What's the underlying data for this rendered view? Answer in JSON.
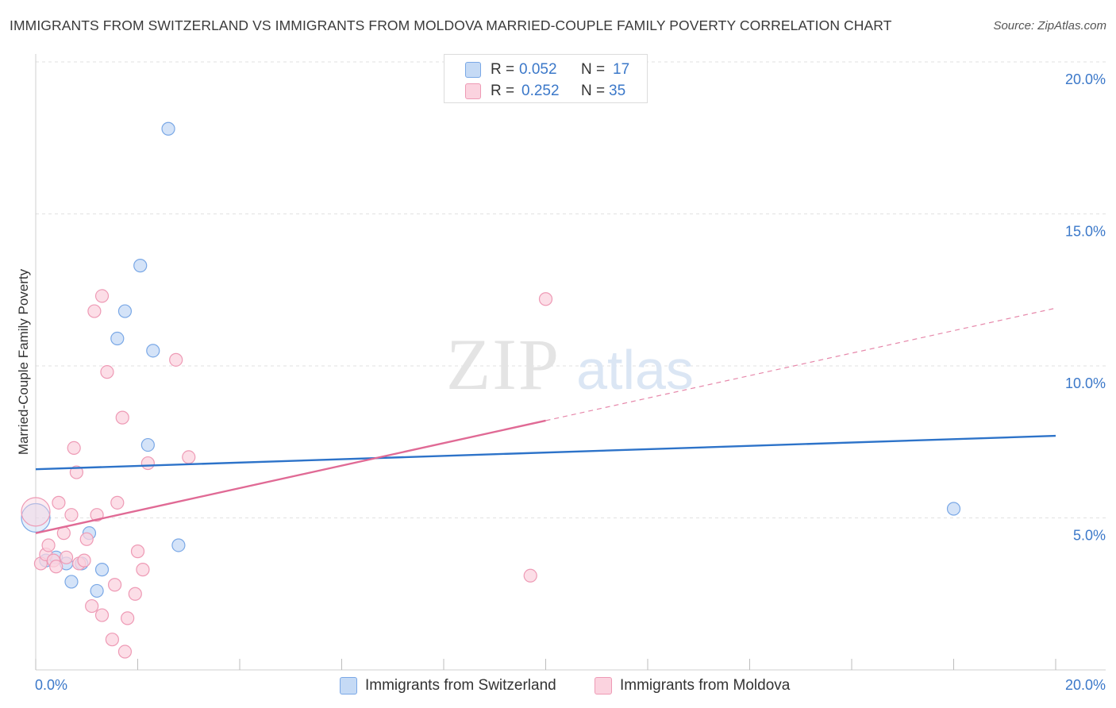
{
  "header": {
    "title": "IMMIGRANTS FROM SWITZERLAND VS IMMIGRANTS FROM MOLDOVA MARRIED-COUPLE FAMILY POVERTY CORRELATION CHART",
    "source": "Source: ZipAtlas.com"
  },
  "watermark": {
    "zip": "ZIP",
    "atlas": "atlas"
  },
  "legend_stats": [
    {
      "r_label": "R =",
      "r_value": "0.052",
      "n_label": "N =",
      "n_value": "17"
    },
    {
      "r_label": "R =",
      "r_value": "0.252",
      "n_label": "N =",
      "n_value": "35"
    }
  ],
  "chart_data": {
    "type": "scatter",
    "title": "IMMIGRANTS FROM SWITZERLAND VS IMMIGRANTS FROM MOLDOVA MARRIED-COUPLE FAMILY POVERTY CORRELATION CHART",
    "xlabel": "",
    "ylabel": "Married-Couple Family Poverty",
    "xlim": [
      0,
      20
    ],
    "ylim": [
      0,
      20
    ],
    "x_tick_labels": [
      "0.0%",
      "20.0%"
    ],
    "y_ticks": [
      5,
      10,
      15,
      20
    ],
    "y_tick_labels": [
      "5.0%",
      "10.0%",
      "15.0%",
      "20.0%"
    ],
    "grid": true,
    "legend_position": "bottom",
    "series": [
      {
        "name": "Immigrants from Switzerland",
        "color": "#7aa8e6",
        "fill": "#c5daf5",
        "r": 0.052,
        "n": 17,
        "trend": {
          "x": [
            0,
            20
          ],
          "y": [
            6.6,
            7.7
          ],
          "color": "#2d73c9"
        },
        "points": [
          {
            "x": 0.0,
            "y": 5.0,
            "big": true
          },
          {
            "x": 0.2,
            "y": 3.6
          },
          {
            "x": 0.4,
            "y": 3.7
          },
          {
            "x": 0.6,
            "y": 3.5
          },
          {
            "x": 0.7,
            "y": 2.9
          },
          {
            "x": 0.9,
            "y": 3.5
          },
          {
            "x": 1.05,
            "y": 4.5
          },
          {
            "x": 1.2,
            "y": 2.6
          },
          {
            "x": 1.3,
            "y": 3.3
          },
          {
            "x": 1.6,
            "y": 10.9
          },
          {
            "x": 1.75,
            "y": 11.8
          },
          {
            "x": 2.05,
            "y": 13.3
          },
          {
            "x": 2.2,
            "y": 7.4
          },
          {
            "x": 2.3,
            "y": 10.5
          },
          {
            "x": 2.6,
            "y": 17.8
          },
          {
            "x": 2.8,
            "y": 4.1
          },
          {
            "x": 18.0,
            "y": 5.3
          }
        ]
      },
      {
        "name": "Immigrants from Moldova",
        "color": "#ee9ab5",
        "fill": "#fbd3df",
        "r": 0.252,
        "n": 35,
        "trend": {
          "x": [
            0,
            10
          ],
          "y": [
            4.5,
            8.2
          ],
          "color": "#e06a95",
          "dashed_extension": {
            "x": [
              10,
              20
            ],
            "y": [
              8.2,
              11.9
            ]
          }
        },
        "points": [
          {
            "x": 0.0,
            "y": 5.2,
            "big": true
          },
          {
            "x": 0.1,
            "y": 3.5
          },
          {
            "x": 0.2,
            "y": 3.8
          },
          {
            "x": 0.25,
            "y": 4.1
          },
          {
            "x": 0.35,
            "y": 3.6
          },
          {
            "x": 0.4,
            "y": 3.4
          },
          {
            "x": 0.45,
            "y": 5.5
          },
          {
            "x": 0.55,
            "y": 4.5
          },
          {
            "x": 0.6,
            "y": 3.7
          },
          {
            "x": 0.7,
            "y": 5.1
          },
          {
            "x": 0.75,
            "y": 7.3
          },
          {
            "x": 0.8,
            "y": 6.5
          },
          {
            "x": 0.85,
            "y": 3.5
          },
          {
            "x": 0.95,
            "y": 3.6
          },
          {
            "x": 1.0,
            "y": 4.3
          },
          {
            "x": 1.1,
            "y": 2.1
          },
          {
            "x": 1.15,
            "y": 11.8
          },
          {
            "x": 1.2,
            "y": 5.1
          },
          {
            "x": 1.3,
            "y": 1.8
          },
          {
            "x": 1.3,
            "y": 12.3
          },
          {
            "x": 1.4,
            "y": 9.8
          },
          {
            "x": 1.5,
            "y": 1.0
          },
          {
            "x": 1.55,
            "y": 2.8
          },
          {
            "x": 1.6,
            "y": 5.5
          },
          {
            "x": 1.7,
            "y": 8.3
          },
          {
            "x": 1.75,
            "y": 0.6
          },
          {
            "x": 1.8,
            "y": 1.7
          },
          {
            "x": 1.95,
            "y": 2.5
          },
          {
            "x": 2.0,
            "y": 3.9
          },
          {
            "x": 2.1,
            "y": 3.3
          },
          {
            "x": 2.2,
            "y": 6.8
          },
          {
            "x": 2.75,
            "y": 10.2
          },
          {
            "x": 3.0,
            "y": 7.0
          },
          {
            "x": 9.7,
            "y": 3.1
          },
          {
            "x": 10.0,
            "y": 12.2
          }
        ]
      }
    ]
  }
}
